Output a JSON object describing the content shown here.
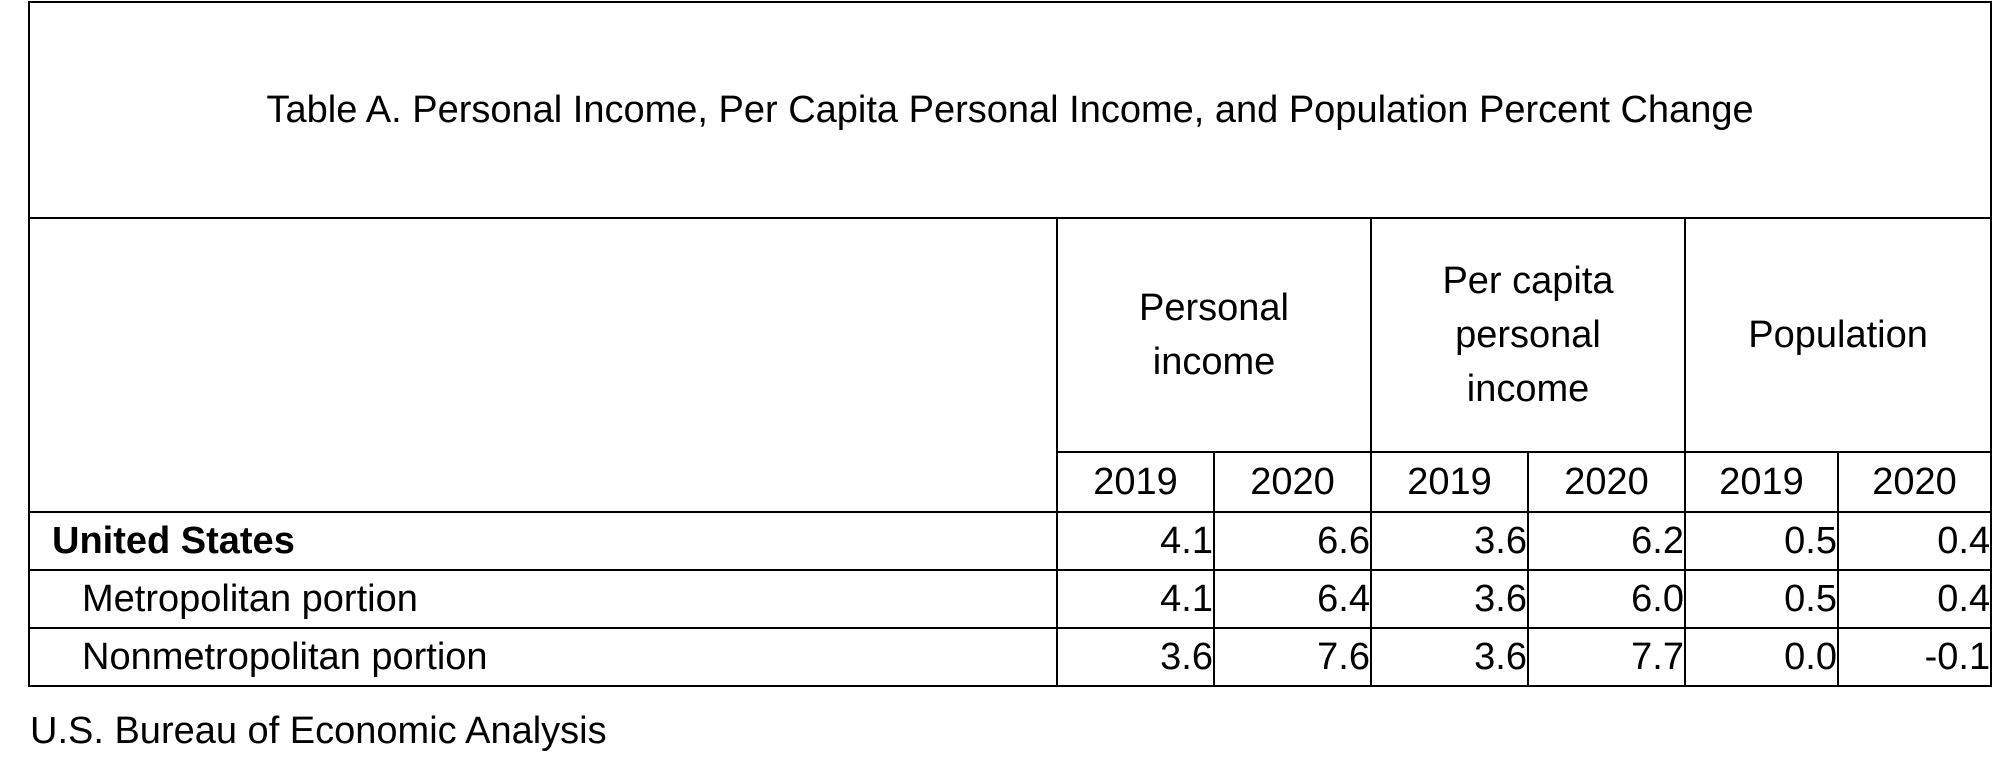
{
  "table": {
    "title": "Table A. Personal Income, Per Capita Personal Income, and Population Percent Change",
    "groups": [
      {
        "label": "Personal income",
        "years": [
          "2019",
          "2020"
        ]
      },
      {
        "label": "Per capita personal income",
        "years": [
          "2019",
          "2020"
        ]
      },
      {
        "label": "Population",
        "years": [
          "2019",
          "2020"
        ]
      }
    ],
    "rows": [
      {
        "label": "United States",
        "values": [
          "4.1",
          "6.6",
          "3.6",
          "6.2",
          "0.5",
          "0.4"
        ]
      },
      {
        "label": "Metropolitan portion",
        "values": [
          "4.1",
          "6.4",
          "3.6",
          "6.0",
          "0.5",
          "0.4"
        ]
      },
      {
        "label": "Nonmetropolitan portion",
        "values": [
          "3.6",
          "7.6",
          "3.6",
          "7.7",
          "0.0",
          "-0.1"
        ]
      }
    ]
  },
  "source": "U.S. Bureau of Economic Analysis"
}
